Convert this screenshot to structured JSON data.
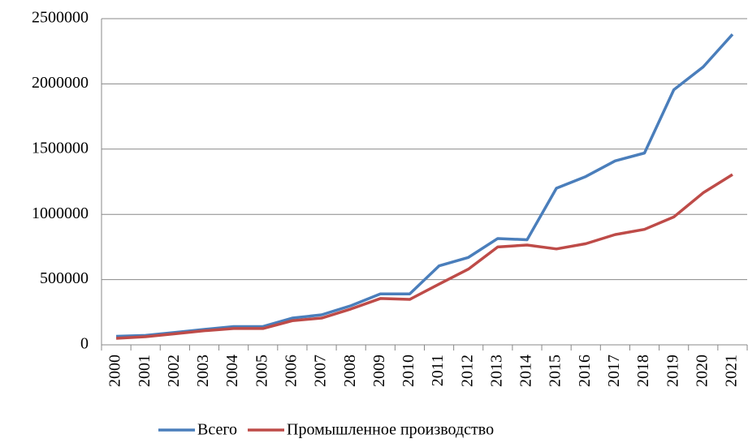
{
  "chart_data": {
    "type": "line",
    "categories": [
      "2000",
      "2001",
      "2002",
      "2003",
      "2004",
      "2005",
      "2006",
      "2007",
      "2008",
      "2009",
      "2010",
      "2011",
      "2012",
      "2013",
      "2014",
      "2015",
      "2016",
      "2017",
      "2018",
      "2019",
      "2020",
      "2021"
    ],
    "series": [
      {
        "name": "Всего",
        "color": "#4a7ebb",
        "values": [
          65000,
          72000,
          95000,
          118000,
          140000,
          140000,
          205000,
          230000,
          300000,
          390000,
          390000,
          605000,
          670000,
          815000,
          805000,
          1200000,
          1290000,
          1410000,
          1470000,
          1955000,
          2130000,
          2380000
        ]
      },
      {
        "name": "Промышленное производство",
        "color": "#be4b48",
        "values": [
          50000,
          62000,
          85000,
          108000,
          125000,
          125000,
          185000,
          205000,
          275000,
          355000,
          348000,
          465000,
          580000,
          750000,
          765000,
          735000,
          775000,
          845000,
          885000,
          980000,
          1165000,
          1305000
        ]
      }
    ],
    "ylim": [
      0,
      2500000
    ],
    "yticks": [
      0,
      500000,
      1000000,
      1500000,
      2000000,
      2500000
    ],
    "grid": true,
    "legend": "bottom"
  }
}
